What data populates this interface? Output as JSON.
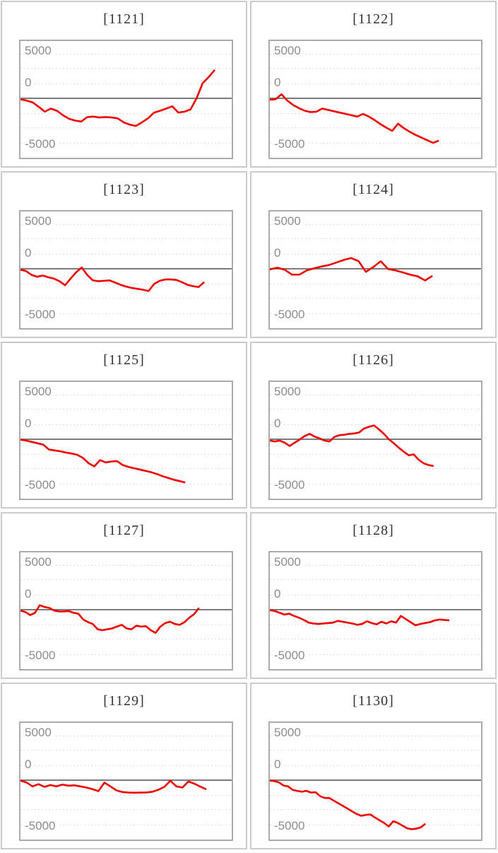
{
  "axis": {
    "ticks": [
      "5000",
      "0",
      "-5000"
    ]
  },
  "style": {
    "line_color": "#ee0000",
    "grid_color": "#dcdcdc",
    "zero_line_color": "#7b7b7b",
    "tick_color": "#8c8c8c",
    "title_color": "#333333",
    "plot_border_color": "#ababab",
    "cell_border_color": "#cbcbcb"
  },
  "chart_data": [
    {
      "type": "line",
      "title": "[1121]",
      "yticks": [
        5000,
        0,
        -5000
      ],
      "ylim": [
        -6700,
        6400
      ],
      "x_span": 0.92,
      "legend": "none",
      "grid": "dotted",
      "values": [
        -100,
        -250,
        -450,
        -950,
        -1500,
        -1150,
        -1400,
        -1900,
        -2300,
        -2500,
        -2600,
        -2100,
        -2050,
        -2150,
        -2100,
        -2150,
        -2250,
        -2700,
        -2950,
        -3100,
        -2700,
        -2250,
        -1600,
        -1400,
        -1150,
        -900,
        -1600,
        -1500,
        -1250,
        0,
        1700,
        2400,
        3200
      ]
    },
    {
      "type": "line",
      "title": "[1122]",
      "yticks": [
        5000,
        0,
        -5000
      ],
      "ylim": [
        -6700,
        6400
      ],
      "x_span": 0.8,
      "legend": "none",
      "grid": "dotted",
      "values": [
        -150,
        -100,
        450,
        -250,
        -750,
        -1100,
        -1400,
        -1550,
        -1500,
        -1150,
        -1300,
        -1450,
        -1600,
        -1750,
        -1900,
        -2050,
        -1750,
        -2050,
        -2450,
        -2900,
        -3300,
        -3650,
        -2850,
        -3350,
        -3750,
        -4100,
        -4400,
        -4700,
        -5000,
        -4750
      ]
    },
    {
      "type": "line",
      "title": "[1123]",
      "yticks": [
        5000,
        0,
        -5000
      ],
      "ylim": [
        -6700,
        6400
      ],
      "x_span": 0.87,
      "legend": "none",
      "grid": "dotted",
      "values": [
        -100,
        -250,
        -700,
        -900,
        -750,
        -950,
        -1100,
        -1400,
        -1850,
        -1100,
        -400,
        150,
        -700,
        -1300,
        -1400,
        -1350,
        -1300,
        -1550,
        -1800,
        -2000,
        -2150,
        -2250,
        -2350,
        -2500,
        -1700,
        -1350,
        -1200,
        -1200,
        -1250,
        -1500,
        -1800,
        -1950,
        -2050,
        -1500
      ]
    },
    {
      "type": "line",
      "title": "[1124]",
      "yticks": [
        5000,
        0,
        -5000
      ],
      "ylim": [
        -6700,
        6400
      ],
      "x_span": 0.77,
      "legend": "none",
      "grid": "dotted",
      "values": [
        -70,
        120,
        -100,
        -660,
        -650,
        -180,
        50,
        260,
        420,
        700,
        990,
        1210,
        850,
        -340,
        200,
        840,
        -20,
        -180,
        -420,
        -670,
        -850,
        -1310,
        -790
      ]
    },
    {
      "type": "line",
      "title": "[1125]",
      "yticks": [
        5000,
        0,
        -5000
      ],
      "ylim": [
        -6700,
        6400
      ],
      "x_span": 0.78,
      "legend": "none",
      "grid": "dotted",
      "values": [
        -50,
        -150,
        -300,
        -450,
        -600,
        -1150,
        -1250,
        -1350,
        -1500,
        -1600,
        -1750,
        -2100,
        -2700,
        -3050,
        -2350,
        -2600,
        -2500,
        -2450,
        -2900,
        -3100,
        -3250,
        -3400,
        -3550,
        -3700,
        -3900,
        -4150,
        -4350,
        -4550,
        -4700,
        -4850
      ]
    },
    {
      "type": "line",
      "title": "[1126]",
      "yticks": [
        5000,
        0,
        -5000
      ],
      "ylim": [
        -6700,
        6400
      ],
      "x_span": 0.775,
      "legend": "none",
      "grid": "dotted",
      "values": [
        -150,
        -250,
        -150,
        -400,
        -750,
        -400,
        -50,
        350,
        600,
        300,
        100,
        -150,
        -250,
        250,
        450,
        500,
        600,
        650,
        750,
        1200,
        1400,
        1550,
        1100,
        600,
        0,
        -450,
        -950,
        -1400,
        -1800,
        -1700,
        -2300,
        -2700,
        -2900,
        -3000
      ]
    },
    {
      "type": "line",
      "title": "[1127]",
      "yticks": [
        5000,
        0,
        -5000
      ],
      "ylim": [
        -6700,
        6400
      ],
      "x_span": 0.845,
      "legend": "none",
      "grid": "dotted",
      "values": [
        -100,
        -250,
        -600,
        -350,
        500,
        300,
        200,
        -100,
        -200,
        -200,
        -150,
        -350,
        -450,
        -1100,
        -1400,
        -1600,
        -2200,
        -2300,
        -2200,
        -2100,
        -1900,
        -1700,
        -2100,
        -2200,
        -1800,
        -1900,
        -1850,
        -2300,
        -2600,
        -1900,
        -1500,
        -1350,
        -1600,
        -1700,
        -1400,
        -900,
        -500,
        200
      ]
    },
    {
      "type": "line",
      "title": "[1128]",
      "yticks": [
        5000,
        0,
        -5000
      ],
      "ylim": [
        -6700,
        6400
      ],
      "x_span": 0.85,
      "legend": "none",
      "grid": "dotted",
      "values": [
        -50,
        -150,
        -350,
        -550,
        -450,
        -700,
        -900,
        -1150,
        -1450,
        -1550,
        -1600,
        -1550,
        -1500,
        -1450,
        -1250,
        -1350,
        -1450,
        -1550,
        -1700,
        -1600,
        -1300,
        -1500,
        -1650,
        -1350,
        -1550,
        -1300,
        -1450,
        -700,
        -1050,
        -1400,
        -1750,
        -1600,
        -1500,
        -1400,
        -1200,
        -1100,
        -1150,
        -1200
      ]
    },
    {
      "type": "line",
      "title": "[1129]",
      "yticks": [
        5000,
        0,
        -5000
      ],
      "ylim": [
        -6700,
        6400
      ],
      "x_span": 0.88,
      "legend": "none",
      "grid": "dotted",
      "values": [
        -50,
        -250,
        -700,
        -450,
        -750,
        -550,
        -700,
        -500,
        -620,
        -580,
        -700,
        -830,
        -1010,
        -1230,
        -280,
        -700,
        -1150,
        -1330,
        -1400,
        -1410,
        -1400,
        -1380,
        -1300,
        -1080,
        -750,
        -60,
        -700,
        -830,
        -150,
        -400,
        -730,
        -1030
      ]
    },
    {
      "type": "line",
      "title": "[1130]",
      "yticks": [
        5000,
        0,
        -5000
      ],
      "ylim": [
        -6700,
        6400
      ],
      "x_span": 0.736,
      "legend": "none",
      "grid": "dotted",
      "values": [
        -50,
        -100,
        -250,
        -600,
        -700,
        -1100,
        -1200,
        -1300,
        -1200,
        -1400,
        -1350,
        -1800,
        -2000,
        -2000,
        -2300,
        -2600,
        -2900,
        -3200,
        -3500,
        -3800,
        -4000,
        -3900,
        -3850,
        -4200,
        -4500,
        -4800,
        -5200,
        -4600,
        -4800,
        -5100,
        -5400,
        -5500,
        -5450,
        -5300,
        -4900
      ]
    }
  ]
}
